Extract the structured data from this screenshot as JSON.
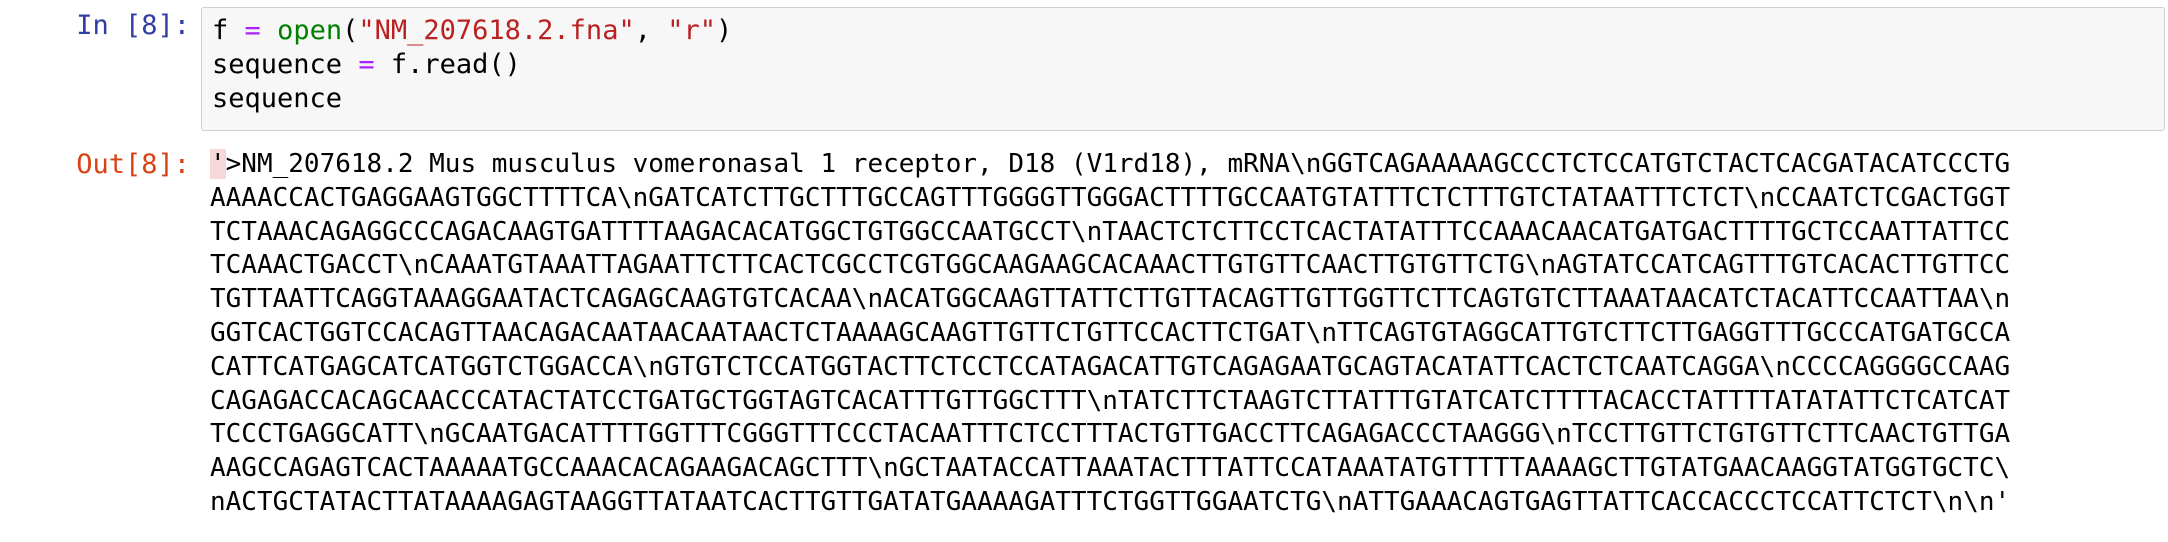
{
  "input_cell": {
    "prompt": "In [8]:",
    "code": {
      "line1": {
        "var": "f",
        "op": "=",
        "fn": "open",
        "open_paren": "(",
        "arg1": "\"NM_207618.2.fna\"",
        "comma": ", ",
        "arg2": "\"r\"",
        "close_paren": ")"
      },
      "line2": {
        "var": "sequence",
        "op": "=",
        "rest": "f.read()"
      },
      "line3": "sequence"
    }
  },
  "output_cell": {
    "prompt": "Out[8]:",
    "first_char": "'",
    "lines": [
      ">NM_207618.2 Mus musculus vomeronasal 1 receptor, D18 (V1rd18), mRNA\\nGGTCAGAAAAAGCCCTCTCCATGTCTACTCACGATACATCCCTG",
      "AAAACCACTGAGGAAGTGGCTTTTCA\\nGATCATCTTGCTTTGCCAGTTTGGGGTTGGGACTTTTGCCAATGTATTTCTCTTTGTCTATAATTTCTCT\\nCCAATCTCGACTGGT",
      "TCTAAACAGAGGCCCAGACAAGTGATTTTAAGACACATGGCTGTGGCCAATGCCT\\nTAACTCTCTTCCTCACTATATTTCCAAACAACATGATGACTTTTGCTCCAATTATTCC",
      "TCAAACTGACCT\\nCAAATGTAAATTAGAATTCTTCACTCGCCTCGTGGCAAGAAGCACAAACTTGTGTTCAACTTGTGTTCTG\\nAGTATCCATCAGTTTGTCACACTTGTTCC",
      "TGTTAATTCAGGTAAAGGAATACTCAGAGCAAGTGTCACAA\\nACATGGCAAGTTATTCTTGTTACAGTTGTTGGTTCTTCAGTGTCTTAAATAACATCTACATTCCAATTAA\\n",
      "GGTCACTGGTCCACAGTTAACAGACAATAACAATAACTCTAAAAGCAAGTTGTTCTGTTCCACTTCTGAT\\nTTCAGTGTAGGCATTGTCTTCTTGAGGTTTGCCCATGATGCCA",
      "CATTCATGAGCATCATGGTCTGGACCA\\nGTGTCTCCATGGTACTTCTCCTCCATAGACATTGTCAGAGAATGCAGTACATATTCACTCTCAATCAGGA\\nCCCCAGGGGCCAAG",
      "CAGAGACCACAGCAACCCATACTATCCTGATGCTGGTAGTCACATTTGTTGGCTTT\\nTATCTTCTAAGTCTTATTTGTATCATCTTTTACACCTATTTTATATATTCTCATCAT",
      "TCCCTGAGGCATT\\nGCAATGACATTTTGGTTTCGGGTTTCCCTACAATTTCTCCTTTACTGTTGACCTTCAGAGACCCTAAGGG\\nTCCTTGTTCTGTGTTCTTCAACTGTTGA",
      "AAGCCAGAGTCACTAAAAATGCCAAACACAGAAGACAGCTTT\\nGCTAATACCATTAAATACTTTATTCCATAAATATGTTTTTAAAAGCTTGTATGAACAAGGTATGGTGCTC\\",
      "nACTGCTATACTTATAAAAGAGTAAGGTTATAATCACTTGTTGATATGAAAAGATTTCTGGTTGGAATCTG\\nATTGAAACAGTGAGTTATTCACCACCCTCCATTCTCT\\n\\n'"
    ]
  }
}
